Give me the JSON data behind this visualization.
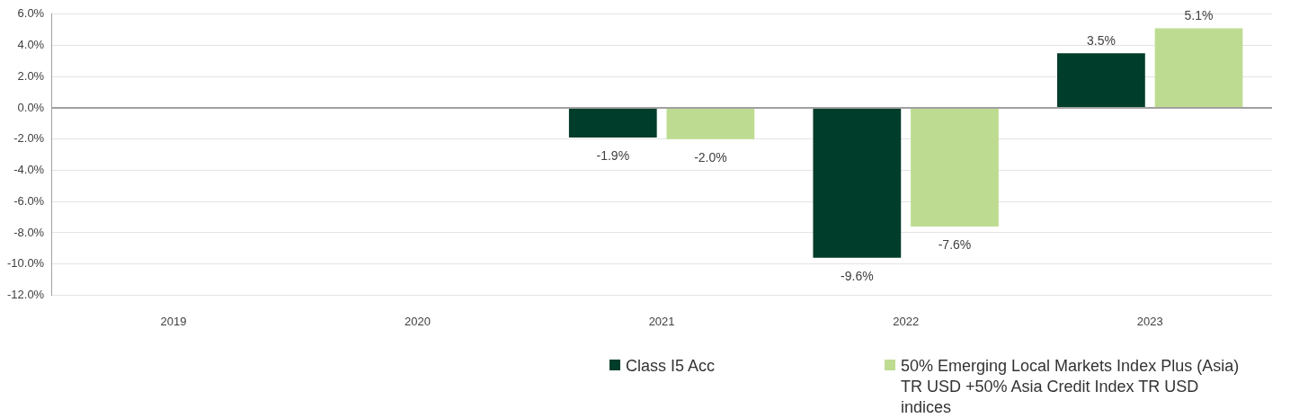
{
  "chart_data": {
    "type": "bar",
    "categories": [
      "2019",
      "2020",
      "2021",
      "2022",
      "2023"
    ],
    "series": [
      {
        "name": "Class I5 Acc",
        "color": "#003d2a",
        "values": [
          null,
          null,
          -1.9,
          -9.6,
          3.5
        ],
        "value_labels": [
          null,
          null,
          "-1.9%",
          "-9.6%",
          "3.5%"
        ]
      },
      {
        "name": "50% Emerging Local Markets Index Plus (Asia) TR USD +50% Asia Credit Index TR USD indices",
        "color": "#bddc91",
        "values": [
          null,
          null,
          -2.0,
          -7.6,
          5.1
        ],
        "value_labels": [
          null,
          null,
          "-2.0%",
          "-7.6%",
          "5.1%"
        ]
      }
    ],
    "ylim": [
      -12,
      6
    ],
    "yticks": [
      {
        "value": -12,
        "label": "-12.0%"
      },
      {
        "value": -10,
        "label": "-10.0%"
      },
      {
        "value": -8,
        "label": "-8.0%"
      },
      {
        "value": -6,
        "label": "-6.0%"
      },
      {
        "value": -4,
        "label": "-4.0%"
      },
      {
        "value": -2,
        "label": "-2.0%"
      },
      {
        "value": 0,
        "label": "0.0%"
      },
      {
        "value": 2,
        "label": "2.0%"
      },
      {
        "value": 4,
        "label": "4.0%"
      },
      {
        "value": 6,
        "label": "6.0%"
      }
    ],
    "grid": "y",
    "legend": "bottom"
  }
}
